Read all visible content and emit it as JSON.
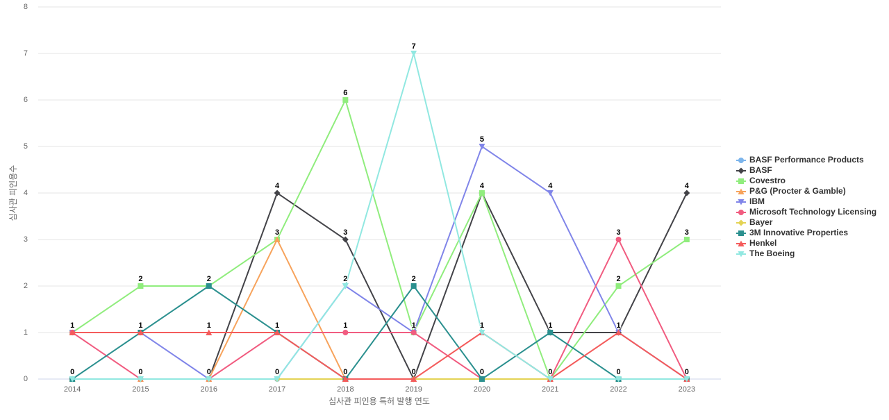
{
  "chart_data": {
    "type": "line",
    "x_label": "심사관 피인용 특허 발행 연도",
    "y_label": "심사관 피인용수",
    "categories": [
      "2014",
      "2015",
      "2016",
      "2017",
      "2018",
      "2019",
      "2020",
      "2021",
      "2022",
      "2023"
    ],
    "ylim": [
      0,
      8
    ],
    "yticks": [
      0,
      1,
      2,
      3,
      4,
      5,
      6,
      7,
      8
    ],
    "grid": true,
    "legend": "right",
    "series": [
      {
        "name": "BASF Performance Products",
        "color": "#7cb5ec",
        "marker": "circle",
        "values": [
          0,
          0,
          0,
          0,
          0,
          0,
          0,
          0,
          0,
          0
        ]
      },
      {
        "name": "BASF",
        "color": "#434348",
        "marker": "diamond",
        "values": [
          0,
          0,
          0,
          4,
          3,
          0,
          4,
          1,
          1,
          4
        ]
      },
      {
        "name": "Covestro",
        "color": "#90ed7d",
        "marker": "square",
        "values": [
          1,
          2,
          2,
          3,
          6,
          1,
          4,
          0,
          2,
          3
        ]
      },
      {
        "name": "P&G (Procter & Gamble)",
        "color": "#f7a35c",
        "marker": "triangle",
        "values": [
          0,
          0,
          0,
          3,
          0,
          0,
          0,
          0,
          0,
          0
        ]
      },
      {
        "name": "IBM",
        "color": "#8085e9",
        "marker": "triangle-down",
        "values": [
          1,
          1,
          0,
          0,
          2,
          1,
          5,
          4,
          1,
          0
        ]
      },
      {
        "name": "Microsoft Technology Licensing",
        "color": "#f15c80",
        "marker": "circle",
        "values": [
          1,
          0,
          0,
          1,
          1,
          1,
          0,
          0,
          3,
          0
        ]
      },
      {
        "name": "Bayer",
        "color": "#e4d354",
        "marker": "diamond",
        "values": [
          0,
          0,
          0,
          0,
          0,
          0,
          0,
          0,
          0,
          0
        ]
      },
      {
        "name": "3M Innovative Properties",
        "color": "#2b908f",
        "marker": "square",
        "values": [
          0,
          1,
          2,
          1,
          0,
          2,
          0,
          1,
          0,
          0
        ]
      },
      {
        "name": "Henkel",
        "color": "#f45b5b",
        "marker": "triangle",
        "values": [
          1,
          1,
          1,
          1,
          0,
          0,
          1,
          0,
          1,
          0
        ]
      },
      {
        "name": "The Boeing",
        "color": "#91e8e1",
        "marker": "triangle-down",
        "values": [
          0,
          0,
          0,
          0,
          2,
          7,
          1,
          0,
          0,
          0
        ]
      }
    ]
  }
}
